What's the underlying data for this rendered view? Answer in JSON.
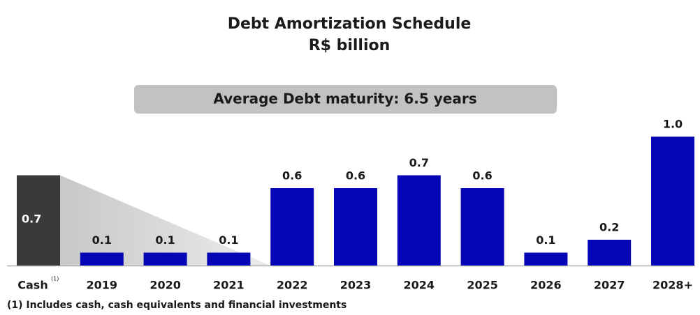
{
  "chart_data": {
    "type": "bar",
    "title": "Debt Amortization  Schedule",
    "subtitle": "R$ billion",
    "banner": "Average Debt maturity: 6.5 years",
    "categories": [
      "Cash",
      "2019",
      "2020",
      "2021",
      "2022",
      "2023",
      "2024",
      "2025",
      "2026",
      "2027",
      "2028+"
    ],
    "category_marker": "(1)",
    "values": [
      0.7,
      0.1,
      0.1,
      0.1,
      0.6,
      0.6,
      0.7,
      0.6,
      0.1,
      0.2,
      1.0
    ],
    "value_labels": [
      "0.7",
      "0.1",
      "0.1",
      "0.1",
      "0.6",
      "0.6",
      "0.7",
      "0.6",
      "0.1",
      "0.2",
      "1.0"
    ],
    "colors": [
      "#3a3a3a",
      "#0606b4",
      "#0606b4",
      "#0606b4",
      "#0606b4",
      "#0606b4",
      "#0606b4",
      "#0606b4",
      "#0606b4",
      "#0606b4",
      "#0606b4"
    ],
    "footnote": "(1) Includes cash, cash equivalents and financial investments"
  }
}
